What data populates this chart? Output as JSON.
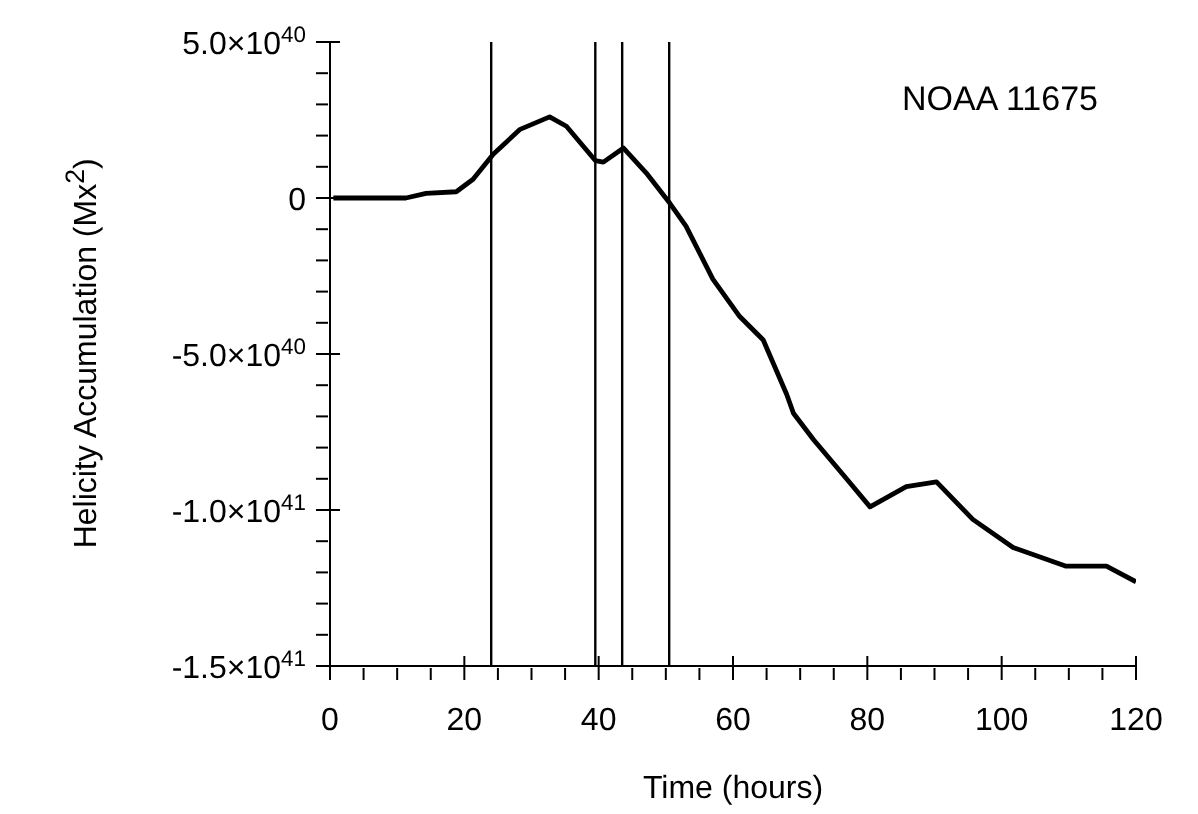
{
  "chart_data": {
    "type": "line",
    "xlabel": "Time (hours)",
    "ylabel": "Helicity Accumulation (Mx$^{2}$)",
    "annotations": [
      "NOAA 11675"
    ],
    "x": [
      0.5,
      11.3,
      14.3,
      18.8,
      21.3,
      24.3,
      28.3,
      32.7,
      35.2,
      39.5,
      40.7,
      43.7,
      47.1,
      50.6,
      53,
      57,
      61,
      64.5,
      68,
      69,
      72,
      76.9,
      80.4,
      85.8,
      90.3,
      95.7,
      101.7,
      109.6,
      115.6,
      120
    ],
    "series": [
      {
        "color": "#000000",
        "values": [
          0,
          0,
          1.5e+39,
          2e+39,
          6e+39,
          1.4e+40,
          2.2e+40,
          2.6e+40,
          2.3e+40,
          1.2e+40,
          1.15e+40,
          1.6e+40,
          8e+39,
          -1.7e+39,
          -9e+39,
          -2.6e+40,
          -3.8e+40,
          -4.55e+40,
          -6.3e+40,
          -6.9e+40,
          -7.75e+40,
          -9e+40,
          -9.9e+40,
          -9.25e+40,
          -9.1e+40,
          -1.03e+41,
          -1.12e+41,
          -1.18e+41,
          -1.18e+41,
          -1.23e+41
        ]
      }
    ],
    "xlim": [
      0,
      120
    ],
    "xticks": [
      0,
      {
        "value": 5,
        "label": null
      },
      {
        "value": 10,
        "label": null
      },
      {
        "value": 15,
        "label": null
      },
      20,
      {
        "value": 25,
        "label": null
      },
      {
        "value": 30,
        "label": null
      },
      {
        "value": 35,
        "label": null
      },
      40,
      {
        "value": 45,
        "label": null
      },
      {
        "value": 50,
        "label": null
      },
      {
        "value": 55,
        "label": null
      },
      60,
      {
        "value": 65,
        "label": null
      },
      {
        "value": 70,
        "label": null
      },
      {
        "value": 75,
        "label": null
      },
      80,
      {
        "value": 85,
        "label": null
      },
      {
        "value": 90,
        "label": null
      },
      {
        "value": 95,
        "label": null
      },
      100,
      {
        "value": 105,
        "label": null
      },
      {
        "value": 110,
        "label": null
      },
      {
        "value": 115,
        "label": null
      },
      120
    ],
    "ylim": [
      -1.5e+41,
      5e+40
    ],
    "yticks": [
      {
        "value": -1.5e+41,
        "label": "-1.5×10$^{41}$"
      },
      {
        "value": -1.4e+41,
        "label": null
      },
      {
        "value": -1.3e+41,
        "label": null
      },
      {
        "value": -1.2e+41,
        "label": null
      },
      {
        "value": -1.1e+41,
        "label": null
      },
      {
        "value": -1e+41,
        "label": "-1.0×10$^{41}$"
      },
      {
        "value": -9e+40,
        "label": null
      },
      {
        "value": -8e+40,
        "label": null
      },
      {
        "value": -7e+40,
        "label": null
      },
      {
        "value": -6e+40,
        "label": null
      },
      {
        "value": -5e+40,
        "label": "-5.0×10$^{40}$"
      },
      {
        "value": -4e+40,
        "label": null
      },
      {
        "value": -3e+40,
        "label": null
      },
      {
        "value": -2e+40,
        "label": null
      },
      {
        "value": -1e+40,
        "label": null
      },
      {
        "value": 0,
        "label": "0"
      },
      {
        "value": 1e+40,
        "label": null
      },
      {
        "value": 2e+40,
        "label": null
      },
      {
        "value": 3e+40,
        "label": null
      },
      {
        "value": 4e+40,
        "label": null
      },
      {
        "value": 5e+40,
        "label": "5.0×10$^{40}$"
      }
    ],
    "ref_lines": [
      {
        "axis": "x",
        "value": 24
      },
      {
        "axis": "x",
        "value": 39.5
      },
      {
        "axis": "x",
        "value": 43.5
      },
      {
        "axis": "x",
        "value": 50.5
      }
    ],
    "grid": false,
    "legend": false,
    "marker": "none",
    "line_style": "solid"
  }
}
